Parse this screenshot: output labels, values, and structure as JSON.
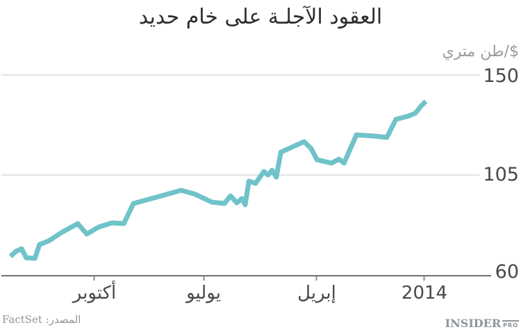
{
  "title": "العقود الآجلـة على خام حديد",
  "y_axis": {
    "unit_label": "$/طن متري",
    "tick_labels": [
      "150",
      "105",
      "60"
    ]
  },
  "x_axis": {
    "tick_labels": [
      "أكتوبر",
      "يوليو",
      "إبريل",
      "2014"
    ]
  },
  "source": {
    "label": "المصدر: FactSet"
  },
  "logo": {
    "main": "INSIDER",
    "sub": "PRO"
  },
  "colors": {
    "line": "#6fc3c9",
    "grid": "#e2e2e2",
    "axis": "#6f6f6f",
    "tick": "#8a8a8a",
    "text_dark": "#484848",
    "text_muted": "#9b9b9b"
  },
  "chart_data": {
    "type": "line",
    "title": "العقود الآجلـة على خام حديد",
    "ylabel": "$/طن متري",
    "ylim": [
      60,
      150
    ],
    "yticks": [
      150,
      105,
      60
    ],
    "xtick_labels": [
      "أكتوبر",
      "يوليو",
      "إبريل",
      "2014"
    ],
    "x_direction": "rtl_time_axis",
    "grid": "horizontal-only",
    "legend": "none",
    "series": [
      {
        "points": [
          [
            0.0,
            68.7
          ],
          [
            0.013,
            70.9
          ],
          [
            0.027,
            72.1
          ],
          [
            0.038,
            68.1
          ],
          [
            0.059,
            67.8
          ],
          [
            0.07,
            74.0
          ],
          [
            0.092,
            75.6
          ],
          [
            0.125,
            79.6
          ],
          [
            0.162,
            83.4
          ],
          [
            0.184,
            78.7
          ],
          [
            0.212,
            81.8
          ],
          [
            0.244,
            83.7
          ],
          [
            0.273,
            83.4
          ],
          [
            0.296,
            92.4
          ],
          [
            0.351,
            95.2
          ],
          [
            0.411,
            98.3
          ],
          [
            0.443,
            96.7
          ],
          [
            0.485,
            93.0
          ],
          [
            0.515,
            92.4
          ],
          [
            0.53,
            95.8
          ],
          [
            0.545,
            92.7
          ],
          [
            0.557,
            94.6
          ],
          [
            0.565,
            91.8
          ],
          [
            0.574,
            102.4
          ],
          [
            0.59,
            101.4
          ],
          [
            0.61,
            106.7
          ],
          [
            0.62,
            105.2
          ],
          [
            0.63,
            107.3
          ],
          [
            0.64,
            104.2
          ],
          [
            0.651,
            115.4
          ],
          [
            0.677,
            117.6
          ],
          [
            0.707,
            120.1
          ],
          [
            0.724,
            117.0
          ],
          [
            0.738,
            112.0
          ],
          [
            0.773,
            110.5
          ],
          [
            0.791,
            112.3
          ],
          [
            0.803,
            110.5
          ],
          [
            0.833,
            123.2
          ],
          [
            0.878,
            122.6
          ],
          [
            0.906,
            122.0
          ],
          [
            0.928,
            130.1
          ],
          [
            0.958,
            131.6
          ],
          [
            0.975,
            132.9
          ],
          [
            0.988,
            136.0
          ],
          [
            1.0,
            138.2
          ]
        ]
      }
    ]
  }
}
